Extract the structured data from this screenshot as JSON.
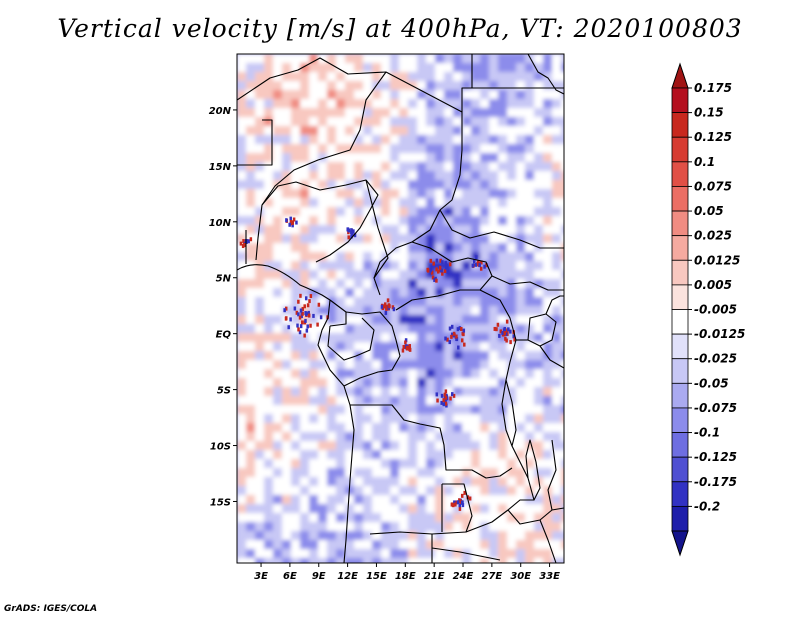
{
  "title": "Vertical velocity [m/s] at 400hPa, VT: 2020100803",
  "credit": "GrADS: IGES/COLA",
  "map": {
    "projection": "latlon",
    "lon_range": [
      0.5,
      34.5
    ],
    "lat_range": [
      -20.5,
      25
    ],
    "lat_ticks": [
      {
        "value": 20,
        "label": "20N"
      },
      {
        "value": 15,
        "label": "15N"
      },
      {
        "value": 10,
        "label": "10N"
      },
      {
        "value": 5,
        "label": "5N"
      },
      {
        "value": 0,
        "label": "EQ"
      },
      {
        "value": -5,
        "label": "5S"
      },
      {
        "value": -10,
        "label": "10S"
      },
      {
        "value": -15,
        "label": "15S"
      }
    ],
    "lon_ticks": [
      {
        "value": 3,
        "label": "3E"
      },
      {
        "value": 6,
        "label": "6E"
      },
      {
        "value": 9,
        "label": "9E"
      },
      {
        "value": 12,
        "label": "12E"
      },
      {
        "value": 15,
        "label": "15E"
      },
      {
        "value": 18,
        "label": "18E"
      },
      {
        "value": 21,
        "label": "21E"
      },
      {
        "value": 24,
        "label": "24E"
      },
      {
        "value": 27,
        "label": "27E"
      },
      {
        "value": 30,
        "label": "30E"
      },
      {
        "value": 33,
        "label": "33E"
      }
    ],
    "field_name": "Vertical velocity",
    "units": "m/s",
    "level": "400hPa",
    "valid_time": "2020100803"
  },
  "colorbar": {
    "orientation": "vertical",
    "levels": [
      {
        "label": "0.175",
        "color": "#b40f1e"
      },
      {
        "label": "0.15",
        "color": "#c8281e"
      },
      {
        "label": "0.125",
        "color": "#d73c32"
      },
      {
        "label": "0.1",
        "color": "#e15046"
      },
      {
        "label": "0.075",
        "color": "#eb6e64"
      },
      {
        "label": "0.05",
        "color": "#f08c82"
      },
      {
        "label": "0.025",
        "color": "#f5aaa0"
      },
      {
        "label": "0.0125",
        "color": "#f8c8c0"
      },
      {
        "label": "0.005",
        "color": "#fbe3de"
      },
      {
        "label": "-0.005",
        "color": "#ffffff"
      },
      {
        "label": "-0.0125",
        "color": "#e1e1fa"
      },
      {
        "label": "-0.025",
        "color": "#c8c8f5"
      },
      {
        "label": "-0.05",
        "color": "#aaaaf0"
      },
      {
        "label": "-0.075",
        "color": "#8c8ceb"
      },
      {
        "label": "-0.1",
        "color": "#6e6ee1"
      },
      {
        "label": "-0.125",
        "color": "#5050d2"
      },
      {
        "label": "-0.175",
        "color": "#3232c3"
      },
      {
        "label": "-0.2",
        "color": "#1e1eaa"
      }
    ],
    "top_overflow_color": "#a01414",
    "bottom_overflow_color": "#14148c"
  },
  "colors": {
    "pos_strong": "#c8281e",
    "pos_mid": "#f08c82",
    "pos_weak": "#f8c8c0",
    "neg_weak": "#c8c8f5",
    "neg_mid": "#8c8ceb",
    "neg_strong": "#3232c3",
    "border": "#000000"
  }
}
